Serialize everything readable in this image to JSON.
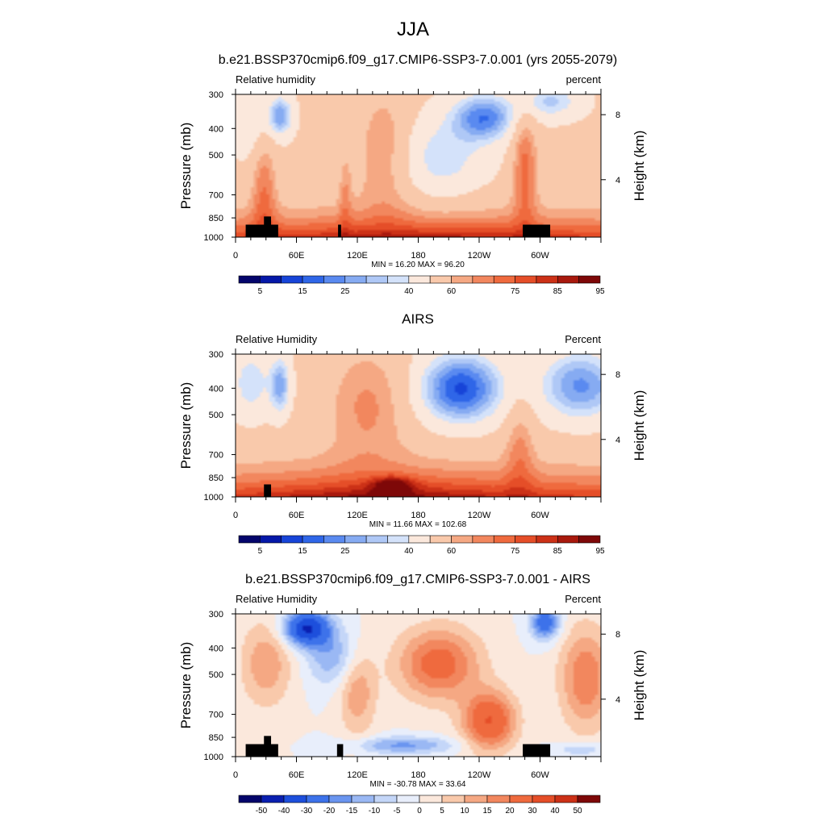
{
  "figure_title": "JJA",
  "chart_data": [
    {
      "type": "heatmap",
      "title": "b.e21.BSSP370cmip6.f09_g17.CMIP6-SSP3-7.0.001 (yrs 2055-2079)",
      "left_label": "Relative humidity",
      "right_label": "percent",
      "ylabel": "Pressure (mb)",
      "y2label": "Height (km)",
      "x_ticks": [
        "0",
        "60E",
        "120E",
        "180",
        "120W",
        "60W"
      ],
      "y_ticks": [
        "300",
        "400",
        "500",
        "700",
        "850",
        "1000"
      ],
      "y2_ticks": [
        "8",
        "4"
      ],
      "y_range": [
        1000,
        300
      ],
      "x_range": [
        0,
        360
      ],
      "stats": "MIN =  16.20  MAX =  96.20",
      "colorbar": {
        "levels": [
          5,
          10,
          15,
          20,
          25,
          30,
          35,
          40,
          50,
          60,
          65,
          70,
          75,
          80,
          85,
          90,
          95
        ],
        "labels": [
          "5",
          "15",
          "25",
          "40",
          "60",
          "75",
          "85",
          "95"
        ],
        "colors": [
          "#04056b",
          "#0518a8",
          "#1744d8",
          "#2f66e8",
          "#5a8af0",
          "#86abf2",
          "#afc8f6",
          "#d4e2fa",
          "#fbe8dc",
          "#f9c9ab",
          "#f5a883",
          "#f2875e",
          "#ef6a3e",
          "#e54e28",
          "#cc3117",
          "#a8190d",
          "#7e0808"
        ]
      },
      "min": 16.2,
      "max": 96.2
    },
    {
      "type": "heatmap",
      "title": "AIRS",
      "left_label": "Relative Humidity",
      "right_label": "Percent",
      "ylabel": "Pressure (mb)",
      "y2label": "Height (km)",
      "x_ticks": [
        "0",
        "60E",
        "120E",
        "180",
        "120W",
        "60W"
      ],
      "y_ticks": [
        "300",
        "400",
        "500",
        "700",
        "850",
        "1000"
      ],
      "y2_ticks": [
        "8",
        "4"
      ],
      "y_range": [
        1000,
        300
      ],
      "x_range": [
        0,
        360
      ],
      "stats": "MIN =  11.66  MAX = 102.68",
      "colorbar": {
        "levels": [
          5,
          10,
          15,
          20,
          25,
          30,
          35,
          40,
          50,
          60,
          65,
          70,
          75,
          80,
          85,
          90,
          95
        ],
        "labels": [
          "5",
          "15",
          "25",
          "40",
          "60",
          "75",
          "85",
          "95"
        ],
        "colors": [
          "#04056b",
          "#0518a8",
          "#1744d8",
          "#2f66e8",
          "#5a8af0",
          "#86abf2",
          "#afc8f6",
          "#d4e2fa",
          "#fbe8dc",
          "#f9c9ab",
          "#f5a883",
          "#f2875e",
          "#ef6a3e",
          "#e54e28",
          "#cc3117",
          "#a8190d",
          "#7e0808"
        ]
      },
      "min": 11.66,
      "max": 102.68
    },
    {
      "type": "heatmap",
      "title": "b.e21.BSSP370cmip6.f09_g17.CMIP6-SSP3-7.0.001 - AIRS",
      "left_label": "Relative Humidity",
      "right_label": "Percent",
      "ylabel": "Pressure (mb)",
      "y2label": "Height (km)",
      "x_ticks": [
        "0",
        "60E",
        "120E",
        "180",
        "120W",
        "60W"
      ],
      "y_ticks": [
        "300",
        "400",
        "500",
        "700",
        "850",
        "1000"
      ],
      "y2_ticks": [
        "8",
        "4"
      ],
      "y_range": [
        1000,
        300
      ],
      "x_range": [
        0,
        360
      ],
      "stats": "MIN = -30.78  MAX =  33.64",
      "colorbar": {
        "levels": [
          -50,
          -40,
          -30,
          -20,
          -15,
          -10,
          -5,
          0,
          5,
          10,
          15,
          20,
          30,
          40,
          50
        ],
        "labels": [
          "-50",
          "-40",
          "-30",
          "-20",
          "-15",
          "-10",
          "-5",
          "0",
          "5",
          "10",
          "15",
          "20",
          "30",
          "40",
          "50"
        ],
        "colors": [
          "#04056b",
          "#0a1fb0",
          "#1d4fdc",
          "#3d72ea",
          "#6a95f0",
          "#9ab8f4",
          "#c4d6f8",
          "#e8eefb",
          "#fbe8dc",
          "#f9c9ab",
          "#f5a883",
          "#f2875e",
          "#ef6a3e",
          "#e54e28",
          "#cc3117",
          "#7e0808"
        ]
      },
      "min": -30.78,
      "max": 33.64
    }
  ]
}
